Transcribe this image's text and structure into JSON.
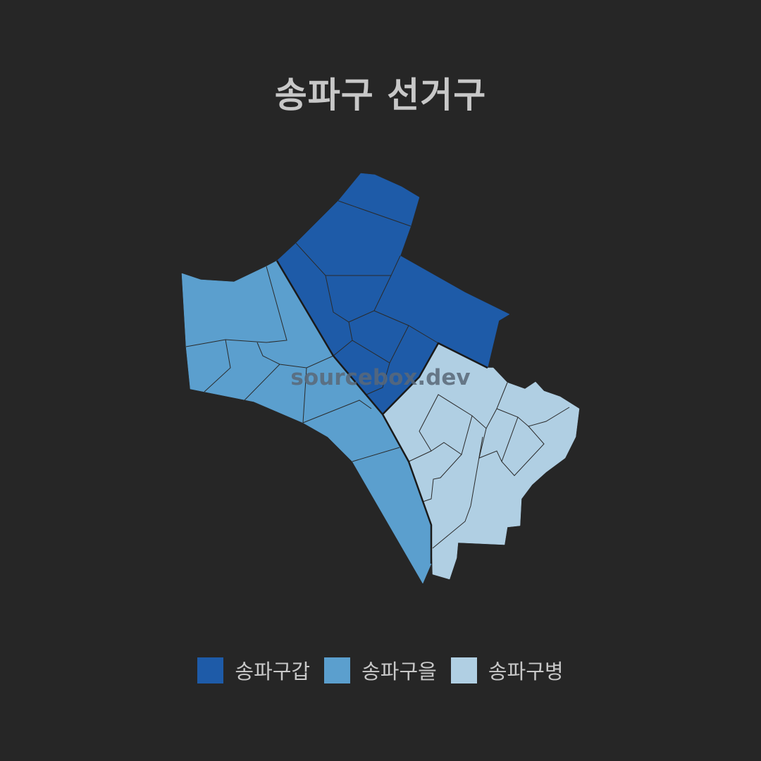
{
  "map": {
    "title": "송파구 선거구",
    "watermark": "sourcebox.dev",
    "districts": [
      {
        "name": "송파구갑",
        "color": "#1e5ba8"
      },
      {
        "name": "송파구을",
        "color": "#5b9fce"
      },
      {
        "name": "송파구병",
        "color": "#b0cfe3"
      }
    ],
    "boundary_color": "#1a1a1a"
  }
}
